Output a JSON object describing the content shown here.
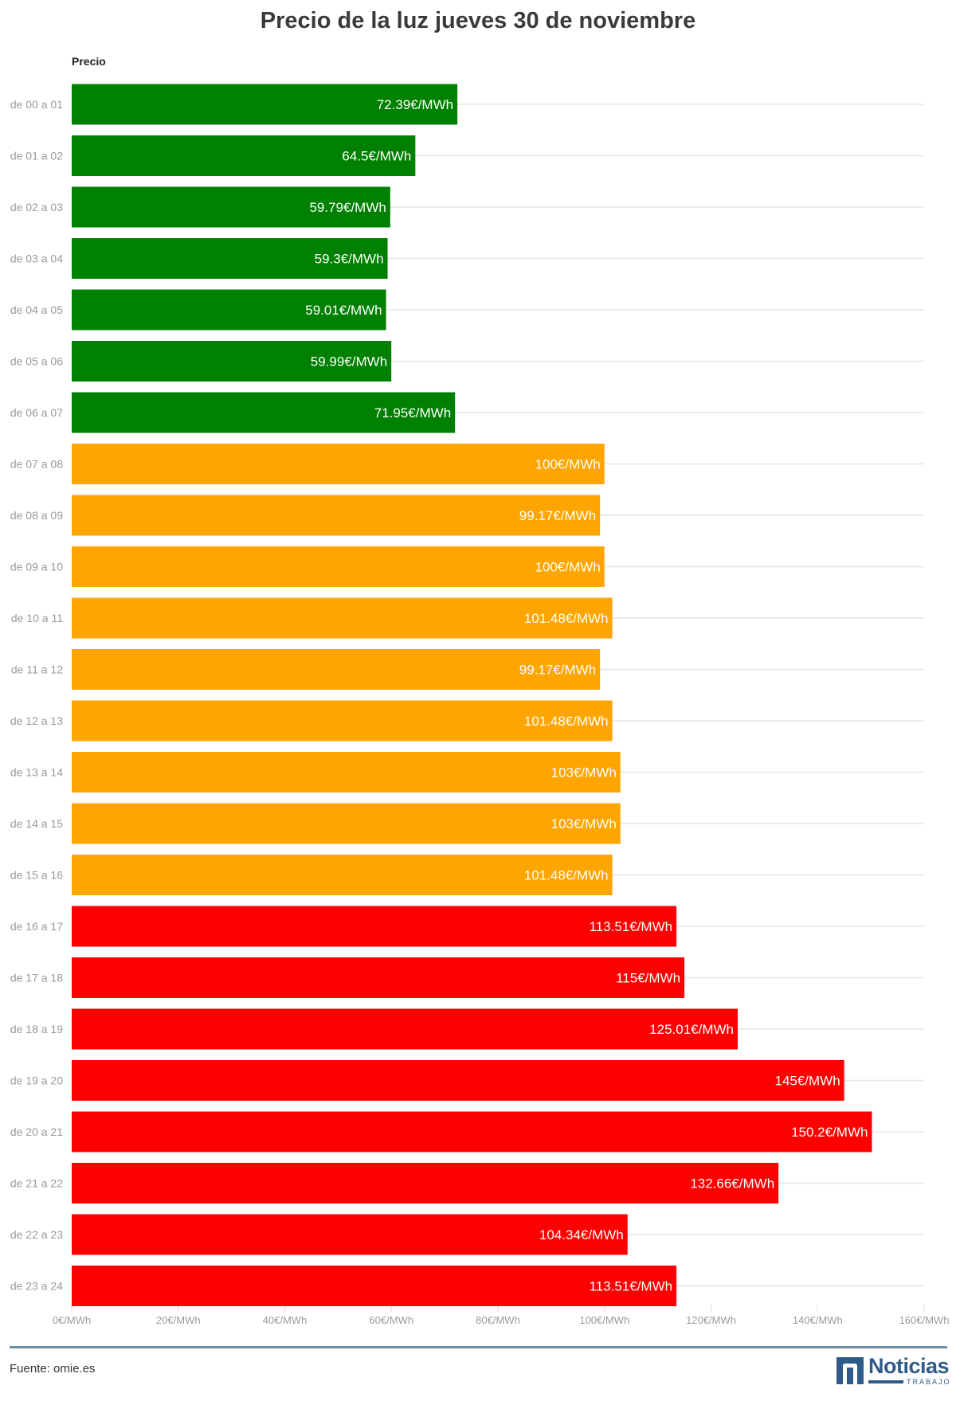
{
  "chart_data": {
    "type": "bar",
    "orientation": "horizontal",
    "title": "Precio de la luz jueves 30 de noviembre",
    "series_label": "Precio",
    "categories": [
      "de 00 a 01",
      "de 01 a 02",
      "de 02 a 03",
      "de 03 a 04",
      "de 04 a 05",
      "de 05 a 06",
      "de 06 a 07",
      "de 07 a 08",
      "de 08 a 09",
      "de 09 a 10",
      "de 10 a 11",
      "de 11 a 12",
      "de 12 a 13",
      "de 13 a 14",
      "de 14 a 15",
      "de 15 a 16",
      "de 16 a 17",
      "de 17 a 18",
      "de 18 a 19",
      "de 19 a 20",
      "de 20 a 21",
      "de 21 a 22",
      "de 22 a 23",
      "de 23 a 24"
    ],
    "values": [
      72.39,
      64.5,
      59.79,
      59.3,
      59.01,
      59.99,
      71.95,
      100,
      99.17,
      100,
      101.48,
      99.17,
      101.48,
      103,
      103,
      101.48,
      113.51,
      115,
      125.01,
      145,
      150.2,
      132.66,
      104.34,
      113.51
    ],
    "value_labels": [
      "72.39€/MWh",
      "64.5€/MWh",
      "59.79€/MWh",
      "59.3€/MWh",
      "59.01€/MWh",
      "59.99€/MWh",
      "71.95€/MWh",
      "100€/MWh",
      "99.17€/MWh",
      "100€/MWh",
      "101.48€/MWh",
      "99.17€/MWh",
      "101.48€/MWh",
      "103€/MWh",
      "103€/MWh",
      "101.48€/MWh",
      "113.51€/MWh",
      "115€/MWh",
      "125.01€/MWh",
      "145€/MWh",
      "150.2€/MWh",
      "132.66€/MWh",
      "104.34€/MWh",
      "113.51€/MWh"
    ],
    "bar_colors": [
      "#008000",
      "#008000",
      "#008000",
      "#008000",
      "#008000",
      "#008000",
      "#008000",
      "#FFA500",
      "#FFA500",
      "#FFA500",
      "#FFA500",
      "#FFA500",
      "#FFA500",
      "#FFA500",
      "#FFA500",
      "#FFA500",
      "#FF0000",
      "#FF0000",
      "#FF0000",
      "#FF0000",
      "#FF0000",
      "#FF0000",
      "#FF0000",
      "#FF0000"
    ],
    "xlim": [
      0,
      160
    ],
    "x_ticks": [
      0,
      20,
      40,
      60,
      80,
      100,
      120,
      140,
      160
    ],
    "x_tick_labels": [
      "0€/MWh",
      "20€/MWh",
      "40€/MWh",
      "60€/MWh",
      "80€/MWh",
      "100€/MWh",
      "120€/MWh",
      "140€/MWh",
      "160€/MWh"
    ],
    "grid": true
  },
  "footer": {
    "source": "Fuente: omie.es",
    "logo_name": "Noticias",
    "logo_sub": "TRABAJO",
    "rule_color": "#6f8fa6",
    "brand_color": "#2f5b8b"
  }
}
